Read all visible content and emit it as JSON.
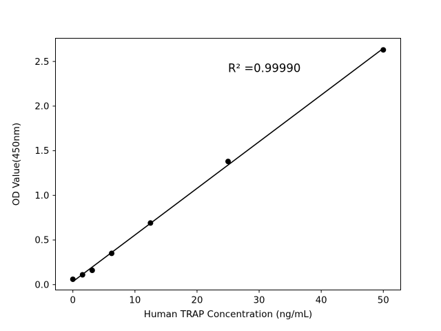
{
  "figure": {
    "background": "#ffffff",
    "foreground": "#000000"
  },
  "chart_data": {
    "type": "scatter",
    "title": "",
    "xlabel": "Human TRAP Concentration (ng/mL)",
    "ylabel": "OD Value(450nm)",
    "x": [
      0,
      1.56,
      3.12,
      6.25,
      12.5,
      25,
      50
    ],
    "y": [
      0.06,
      0.11,
      0.16,
      0.35,
      0.69,
      1.38,
      2.63
    ],
    "fit": {
      "type": "linear"
    },
    "annotation": {
      "text": "R² =0.99990",
      "x": 25,
      "y": 2.38
    },
    "xlim": [
      -2.8,
      52.8
    ],
    "ylim": [
      -0.06,
      2.76
    ],
    "x_ticks": [
      {
        "value": 0,
        "label": "0"
      },
      {
        "value": 10,
        "label": "10"
      },
      {
        "value": 20,
        "label": "20"
      },
      {
        "value": 30,
        "label": "30"
      },
      {
        "value": 40,
        "label": "40"
      },
      {
        "value": 50,
        "label": "50"
      }
    ],
    "y_ticks": [
      {
        "value": 0.0,
        "label": "0.0"
      },
      {
        "value": 0.5,
        "label": "0.5"
      },
      {
        "value": 1.0,
        "label": "1.0"
      },
      {
        "value": 1.5,
        "label": "1.5"
      },
      {
        "value": 2.0,
        "label": "2.0"
      },
      {
        "value": 2.5,
        "label": "2.5"
      }
    ],
    "grid": false,
    "legend": "none",
    "color": "#000000",
    "marker_size": 8,
    "line_width": 1.6
  }
}
